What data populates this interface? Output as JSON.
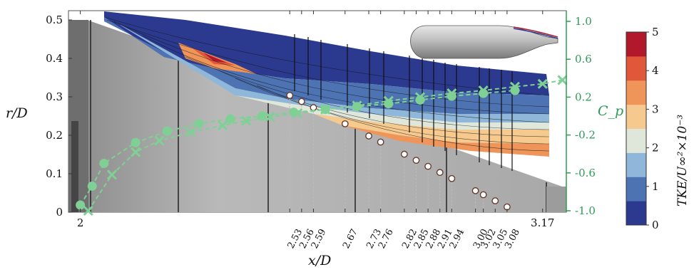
{
  "chart_data": {
    "type": "line",
    "xlabel": "x/D",
    "ylabel_left": "r/D",
    "ylabel_right": "C_p",
    "colorbar_label": "TKE/U∞²×10⁻³",
    "x_tick_labels": [
      "2",
      "2.53",
      "2.56",
      "2.59",
      "2.67",
      "2.73",
      "2.76",
      "2.82",
      "2.85",
      "2.88",
      "2.91",
      "2.94",
      "3.00",
      "3.02",
      "3.05",
      "3.08",
      "3.17"
    ],
    "y_left_ticks": [
      "0",
      "0.1",
      "0.2",
      "0.3",
      "0.4",
      "0.5"
    ],
    "y_right_ticks": [
      "1.0",
      "0.6",
      "0.2",
      "-0.2",
      "-0.6",
      "-1.0"
    ],
    "colorbar_ticks": [
      "0",
      "1",
      "2",
      "3",
      "4",
      "5"
    ],
    "colorbar_colors": [
      "#2b3a8e",
      "#4d73b3",
      "#8fb7d9",
      "#dfe6da",
      "#f6c98e",
      "#ef9559",
      "#e1573a",
      "#b2182b"
    ],
    "station_locations": [
      2.53,
      2.56,
      2.59,
      2.67,
      2.73,
      2.76,
      2.82,
      2.85,
      2.88,
      2.91,
      2.94,
      3.0,
      3.02,
      3.05,
      3.08
    ],
    "surface_profile_r": {
      "x": [
        2.0,
        2.05,
        2.53,
        3.08,
        3.17
      ],
      "r": [
        0.5,
        0.5,
        0.3,
        0.01,
        0.01
      ]
    },
    "series": [
      {
        "marker": "x",
        "x": [
          2.02,
          2.08,
          2.14,
          2.2,
          2.28,
          2.36,
          2.42,
          2.48,
          2.55,
          2.62,
          2.7,
          2.78,
          2.86,
          2.94,
          3.02,
          3.1,
          3.17,
          3.22
        ],
        "cp": [
          -1.0,
          -0.62,
          -0.38,
          -0.26,
          -0.17,
          -0.1,
          -0.05,
          -0.01,
          0.03,
          0.07,
          0.11,
          0.16,
          0.2,
          0.24,
          0.27,
          0.31,
          0.34,
          0.38
        ]
      },
      {
        "marker": "circle",
        "x": [
          2.0,
          2.03,
          2.06,
          2.14,
          2.22,
          2.3,
          2.38,
          2.46,
          2.54,
          2.62,
          2.7,
          2.78,
          2.86,
          2.94,
          3.02,
          3.1
        ],
        "cp": [
          -0.94,
          -0.74,
          -0.5,
          -0.28,
          -0.16,
          -0.08,
          -0.03,
          0.0,
          0.04,
          0.07,
          0.1,
          0.13,
          0.17,
          0.21,
          0.24,
          0.27
        ]
      }
    ],
    "ylim_left": [
      0,
      0.5
    ],
    "ylim_right": [
      -1.0,
      1.0
    ],
    "colorbar_range": [
      0,
      5
    ]
  }
}
